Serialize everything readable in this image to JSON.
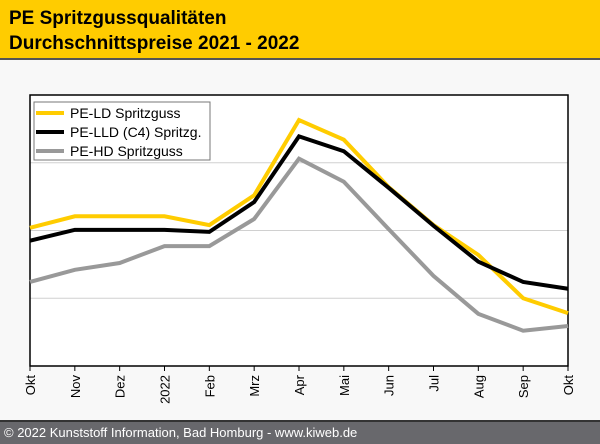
{
  "header": {
    "line1": "PE Spritzgussqualitäten",
    "line2": "Durchschnittspreise 2021 - 2022"
  },
  "footer": {
    "text": "© 2022 Kunststoff Information, Bad Homburg - www.kiweb.de"
  },
  "chart_data": {
    "type": "line",
    "title": "PE Spritzgussqualitäten Durchschnittspreise 2021 - 2022",
    "xlabel": "",
    "ylabel": "",
    "categories": [
      "Okt",
      "Nov",
      "Dez",
      "2022",
      "Feb",
      "Mrz",
      "Apr",
      "Mai",
      "Jun",
      "Jul",
      "Aug",
      "Sep",
      "Okt"
    ],
    "ylim": [
      0,
      4
    ],
    "grid": true,
    "legend": "top-left",
    "series": [
      {
        "name": "PE-LD Spritzguss",
        "color": "#ffcc00",
        "values": [
          2.04,
          2.21,
          2.21,
          2.21,
          2.08,
          2.52,
          3.63,
          3.34,
          2.64,
          2.08,
          1.64,
          1.0,
          0.78
        ]
      },
      {
        "name": "PE-LLD (C4) Spritzg.",
        "color": "#000000",
        "values": [
          1.85,
          2.01,
          2.01,
          2.01,
          1.98,
          2.42,
          3.39,
          3.17,
          2.63,
          2.07,
          1.54,
          1.24,
          1.14
        ]
      },
      {
        "name": "PE-HD Spritzguss",
        "color": "#999999",
        "values": [
          1.24,
          1.42,
          1.52,
          1.77,
          1.77,
          2.17,
          3.06,
          2.72,
          2.02,
          1.33,
          0.77,
          0.52,
          0.59
        ]
      }
    ]
  }
}
